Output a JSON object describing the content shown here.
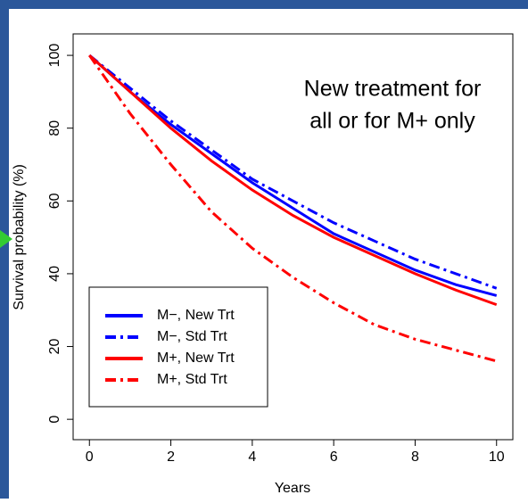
{
  "chart_data": {
    "type": "line",
    "annotation": [
      "New treatment for",
      "all or for M+ only"
    ],
    "x_label": "Years",
    "y_label": "Survival probability (%)",
    "x": [
      0,
      1,
      2,
      3,
      4,
      5,
      6,
      7,
      8,
      9,
      10
    ],
    "series": [
      {
        "name": "M−, New Trt",
        "color": "#0000ff",
        "dash": "solid",
        "values": [
          100,
          90,
          81,
          73,
          65,
          58,
          51,
          46,
          41,
          37,
          34
        ]
      },
      {
        "name": "M−, Std Trt",
        "color": "#0000ff",
        "dash": "dashdot",
        "values": [
          100,
          91,
          82,
          74,
          66,
          60,
          54,
          49,
          44,
          40,
          36
        ]
      },
      {
        "name": "M+, New Trt",
        "color": "#ff0000",
        "dash": "solid",
        "values": [
          100,
          90,
          80,
          71,
          63,
          56,
          50,
          45,
          40,
          35.5,
          31.5
        ]
      },
      {
        "name": "M+, Std Trt",
        "color": "#ff0000",
        "dash": "dashdot",
        "values": [
          100,
          84,
          70,
          57,
          47,
          39,
          32,
          26,
          22,
          19,
          16
        ]
      }
    ],
    "xlim": [
      -0.4,
      10.4
    ],
    "xticks": [
      0,
      2,
      4,
      6,
      8,
      10
    ],
    "ylim": [
      -5.6,
      105.9
    ],
    "yticks": [
      0,
      20,
      40,
      60,
      80,
      100
    ],
    "grid": false,
    "legend": "bottom-left"
  }
}
